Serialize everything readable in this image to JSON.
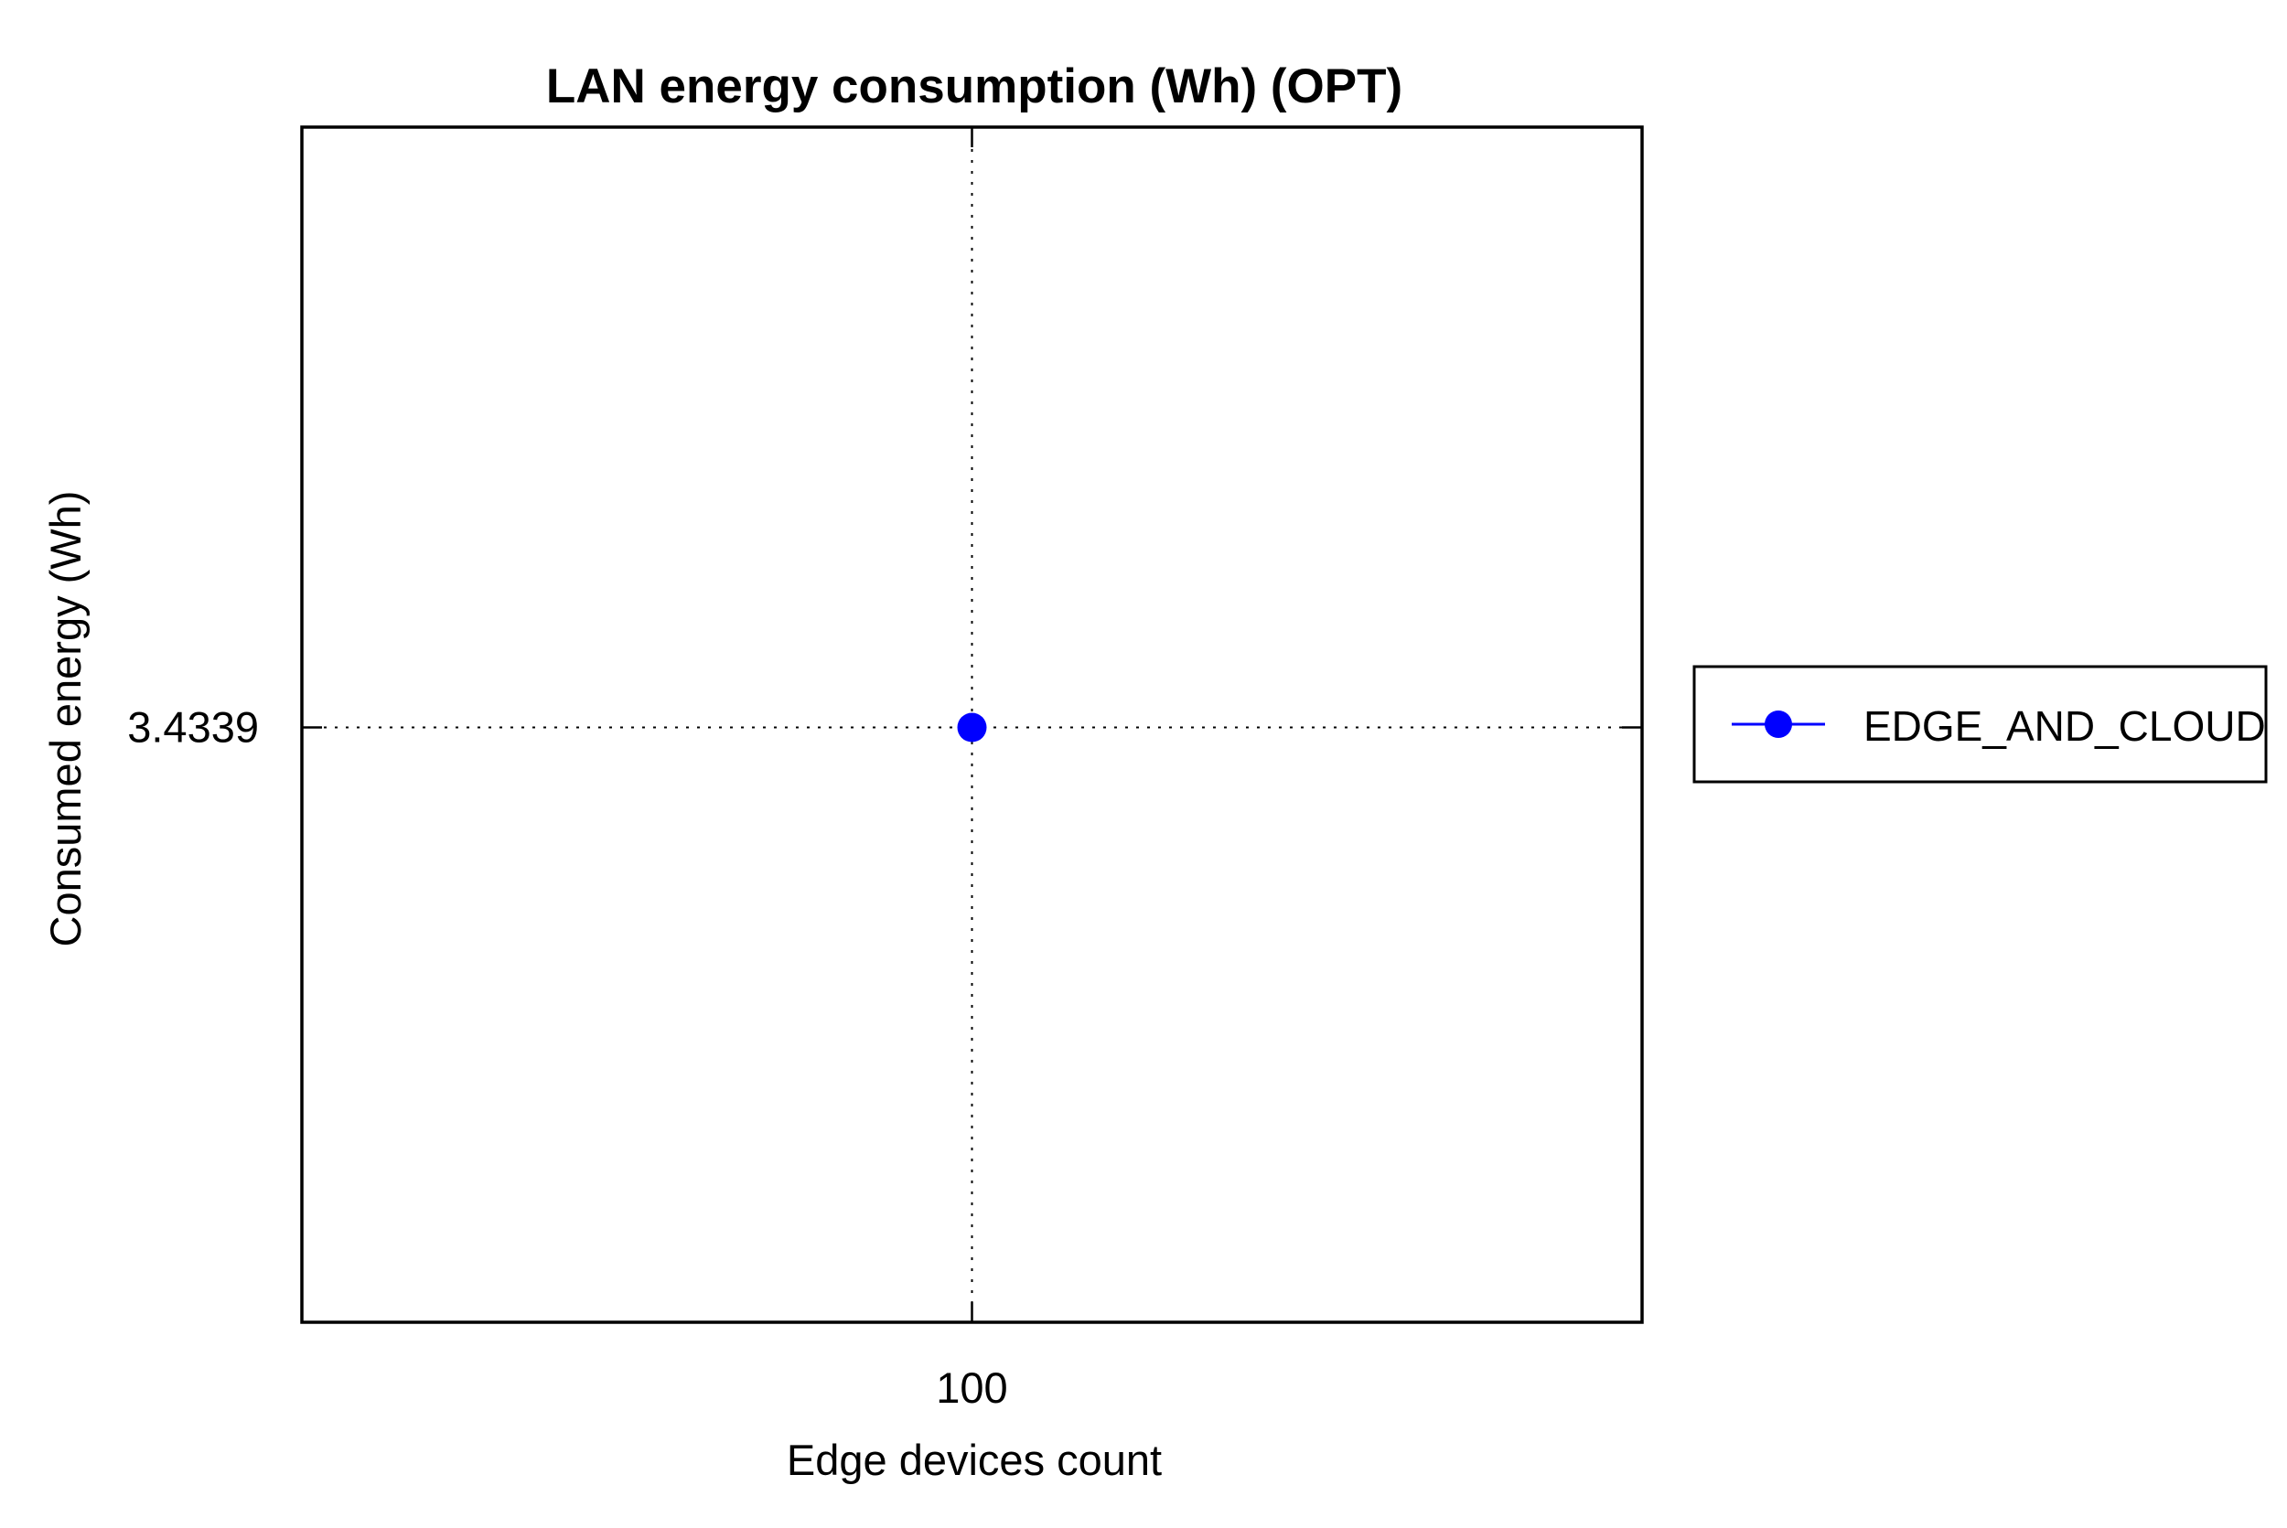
{
  "chart_data": {
    "type": "line",
    "title": "LAN energy consumption (Wh) (OPT)",
    "xlabel": "Edge devices count",
    "ylabel": "Consumed energy (Wh)",
    "x": [
      100
    ],
    "x_tick_labels": [
      "100"
    ],
    "y_tick_labels": [
      "3.4339"
    ],
    "y_ticks": [
      3.4339
    ],
    "series": [
      {
        "name": "EDGE_AND_CLOUD",
        "x": [
          100
        ],
        "values": [
          3.4339
        ],
        "color": "#0000ff",
        "marker": "circle"
      }
    ],
    "grid": true,
    "grid_style": "dotted",
    "legend_position": "right"
  }
}
